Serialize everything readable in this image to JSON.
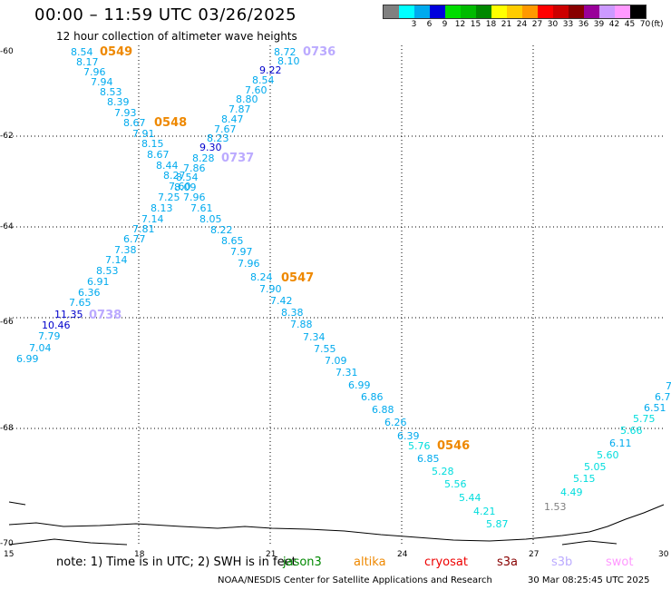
{
  "title": "00:00 – 11:59 UTC 03/26/2025",
  "subtitle": "12 hour collection of altimeter wave heights",
  "legend": {
    "unit": "(ft)",
    "colors": [
      "#808080",
      "#00ffff",
      "#00aaee",
      "#0000dd",
      "#00dd00",
      "#00bb00",
      "#008800",
      "#ffff00",
      "#ffcc00",
      "#ff9900",
      "#ff0000",
      "#cc0000",
      "#880000",
      "#990099",
      "#cc99ff",
      "#ff99ff",
      "#000000"
    ],
    "labels": [
      "",
      "3",
      "6",
      "9",
      "12",
      "15",
      "18",
      "21",
      "24",
      "27",
      "30",
      "33",
      "36",
      "39",
      "42",
      "45",
      "70"
    ]
  },
  "axes": {
    "x_ticks": [
      "15",
      "18",
      "21",
      "24",
      "27",
      "30"
    ],
    "y_ticks": [
      "-60",
      "-62",
      "-64",
      "-66",
      "-68",
      "-70"
    ]
  },
  "passes": [
    {
      "id": "0549",
      "color": "#ee8800"
    },
    {
      "id": "0548",
      "color": "#ee8800"
    },
    {
      "id": "0736",
      "color": "#bbaaff"
    },
    {
      "id": "0737",
      "color": "#bbaaff"
    },
    {
      "id": "0547",
      "color": "#ee8800"
    },
    {
      "id": "0738",
      "color": "#bbaaff"
    },
    {
      "id": "0546",
      "color": "#ee8800"
    }
  ],
  "values": [
    {
      "v": "8.54",
      "c": "#00aaee"
    },
    {
      "v": "8.17",
      "c": "#00aaee"
    },
    {
      "v": "7.96",
      "c": "#00aaee"
    },
    {
      "v": "7.94",
      "c": "#00aaee"
    },
    {
      "v": "8.53",
      "c": "#00aaee"
    },
    {
      "v": "8.39",
      "c": "#00aaee"
    },
    {
      "v": "7.93",
      "c": "#00aaee"
    },
    {
      "v": "8.67",
      "c": "#00aaee"
    },
    {
      "v": "7.91",
      "c": "#00aaee"
    },
    {
      "v": "8.15",
      "c": "#00aaee"
    },
    {
      "v": "8.67",
      "c": "#00aaee"
    },
    {
      "v": "8.44",
      "c": "#00aaee"
    },
    {
      "v": "8.27",
      "c": "#00aaee"
    },
    {
      "v": "7.60",
      "c": "#00aaee"
    },
    {
      "v": "7.25",
      "c": "#00aaee"
    },
    {
      "v": "8.13",
      "c": "#00aaee"
    },
    {
      "v": "7.14",
      "c": "#00aaee"
    },
    {
      "v": "7.81",
      "c": "#00aaee"
    },
    {
      "v": "6.77",
      "c": "#00aaee"
    },
    {
      "v": "7.38",
      "c": "#00aaee"
    },
    {
      "v": "7.14",
      "c": "#00aaee"
    },
    {
      "v": "8.53",
      "c": "#00aaee"
    },
    {
      "v": "6.91",
      "c": "#00aaee"
    },
    {
      "v": "6.36",
      "c": "#00aaee"
    },
    {
      "v": "7.65",
      "c": "#00aaee"
    },
    {
      "v": "11.35",
      "c": "#0000cc"
    },
    {
      "v": "10.46",
      "c": "#0000cc"
    },
    {
      "v": "7.79",
      "c": "#00aaee"
    },
    {
      "v": "7.04",
      "c": "#00aaee"
    },
    {
      "v": "6.99",
      "c": "#00aaee"
    },
    {
      "v": "8.72",
      "c": "#00aaee"
    },
    {
      "v": "8.10",
      "c": "#00aaee"
    },
    {
      "v": "9.22",
      "c": "#0000cc"
    },
    {
      "v": "8.54",
      "c": "#00aaee"
    },
    {
      "v": "7.60",
      "c": "#00aaee"
    },
    {
      "v": "8.80",
      "c": "#00aaee"
    },
    {
      "v": "7.87",
      "c": "#00aaee"
    },
    {
      "v": "8.47",
      "c": "#00aaee"
    },
    {
      "v": "7.67",
      "c": "#00aaee"
    },
    {
      "v": "8.23",
      "c": "#00aaee"
    },
    {
      "v": "9.30",
      "c": "#0000cc"
    },
    {
      "v": "8.28",
      "c": "#00aaee"
    },
    {
      "v": "7.86",
      "c": "#00aaee"
    },
    {
      "v": "8.54",
      "c": "#00aaee"
    },
    {
      "v": "8.09",
      "c": "#00aaee"
    },
    {
      "v": "7.96",
      "c": "#00aaee"
    },
    {
      "v": "7.61",
      "c": "#00aaee"
    },
    {
      "v": "8.05",
      "c": "#00aaee"
    },
    {
      "v": "8.22",
      "c": "#00aaee"
    },
    {
      "v": "8.65",
      "c": "#00aaee"
    },
    {
      "v": "7.97",
      "c": "#00aaee"
    },
    {
      "v": "7.96",
      "c": "#00aaee"
    },
    {
      "v": "8.24",
      "c": "#00aaee"
    },
    {
      "v": "7.90",
      "c": "#00aaee"
    },
    {
      "v": "7.42",
      "c": "#00aaee"
    },
    {
      "v": "8.38",
      "c": "#00aaee"
    },
    {
      "v": "7.88",
      "c": "#00aaee"
    },
    {
      "v": "7.34",
      "c": "#00aaee"
    },
    {
      "v": "7.55",
      "c": "#00aaee"
    },
    {
      "v": "7.09",
      "c": "#00aaee"
    },
    {
      "v": "7.31",
      "c": "#00aaee"
    },
    {
      "v": "6.99",
      "c": "#00aaee"
    },
    {
      "v": "6.86",
      "c": "#00aaee"
    },
    {
      "v": "6.88",
      "c": "#00aaee"
    },
    {
      "v": "6.26",
      "c": "#00aaee"
    },
    {
      "v": "6.39",
      "c": "#00aaee"
    },
    {
      "v": "5.76",
      "c": "#00dddd"
    },
    {
      "v": "6.85",
      "c": "#00aaee"
    },
    {
      "v": "5.28",
      "c": "#00dddd"
    },
    {
      "v": "5.56",
      "c": "#00dddd"
    },
    {
      "v": "5.44",
      "c": "#00dddd"
    },
    {
      "v": "4.21",
      "c": "#00dddd"
    },
    {
      "v": "5.87",
      "c": "#00dddd"
    },
    {
      "v": "1.53",
      "c": "#808080"
    },
    {
      "v": "4.49",
      "c": "#00dddd"
    },
    {
      "v": "5.15",
      "c": "#00dddd"
    },
    {
      "v": "5.05",
      "c": "#00dddd"
    },
    {
      "v": "5.60",
      "c": "#00dddd"
    },
    {
      "v": "6.11",
      "c": "#00aaee"
    },
    {
      "v": "5.66",
      "c": "#00dddd"
    },
    {
      "v": "5.75",
      "c": "#00dddd"
    },
    {
      "v": "6.51",
      "c": "#00aaee"
    },
    {
      "v": "6.7",
      "c": "#00aaee"
    },
    {
      "v": "7",
      "c": "#00aaee"
    }
  ],
  "note": "note:  1) Time is in UTC;  2) SWH is in feet",
  "satellites": [
    {
      "name": "jason3",
      "color": "#008800"
    },
    {
      "name": "altika",
      "color": "#ee8800"
    },
    {
      "name": "cryosat",
      "color": "#ee0000"
    },
    {
      "name": "s3a",
      "color": "#880000"
    },
    {
      "name": "s3b",
      "color": "#bbaaff"
    },
    {
      "name": "swot",
      "color": "#ff99ff"
    }
  ],
  "credit": "NOAA/NESDIS Center for Satellite Applications and Research",
  "stamp": "30 Mar 08:25:45 UTC 2025"
}
